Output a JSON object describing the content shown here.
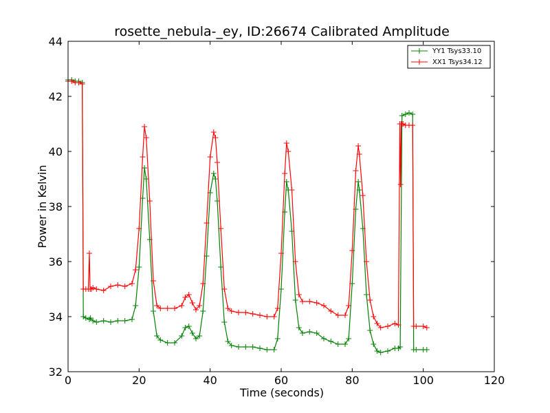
{
  "chart_data": {
    "type": "line",
    "title": "rosette_nebula-_ey, ID:26674 Calibrated Amplitude",
    "xlabel": "Time (seconds)",
    "ylabel": "Power in Kelvin",
    "xlim": [
      0,
      120
    ],
    "ylim": [
      32,
      44
    ],
    "xticks": [
      0,
      20,
      40,
      60,
      80,
      100,
      120
    ],
    "yticks": [
      32,
      34,
      36,
      38,
      40,
      42,
      44
    ],
    "grid": false,
    "legend_position": "top-right",
    "marker": "+",
    "series": [
      {
        "name": "YY1 Tsys33.10",
        "color": "#008000",
        "x": [
          0,
          1,
          2,
          3,
          4,
          4.3,
          5,
          6,
          6.3,
          7,
          8,
          10,
          12,
          14,
          16,
          18,
          19,
          20,
          21,
          21.5,
          22,
          23,
          24,
          25,
          26,
          28,
          30,
          32,
          33,
          34,
          35,
          36,
          37,
          38,
          39,
          40,
          41,
          41.5,
          42,
          43,
          44,
          45,
          46,
          48,
          50,
          52,
          54,
          56,
          58,
          59,
          60,
          61,
          61.5,
          62,
          63,
          64,
          65,
          66,
          68,
          70,
          72,
          74,
          76,
          78,
          79,
          80,
          81,
          81.7,
          82,
          83,
          84,
          85,
          86,
          87,
          88,
          90,
          92,
          93,
          93.5,
          94,
          95,
          96,
          97,
          97.3,
          98,
          100,
          101
        ],
        "values": [
          42.6,
          42.6,
          42.55,
          42.55,
          42.5,
          34.0,
          33.95,
          33.9,
          33.95,
          33.85,
          33.8,
          33.85,
          33.8,
          33.85,
          33.85,
          33.9,
          34.4,
          35.8,
          38.3,
          39.4,
          39.0,
          36.8,
          34.2,
          33.3,
          33.15,
          33.05,
          33.05,
          33.3,
          33.6,
          33.65,
          33.4,
          33.2,
          33.3,
          34.2,
          36.2,
          38.5,
          39.2,
          39.0,
          38.2,
          35.8,
          33.8,
          33.1,
          32.95,
          32.9,
          32.9,
          32.9,
          32.85,
          32.8,
          32.8,
          33.2,
          35.0,
          37.8,
          38.9,
          38.6,
          37.1,
          34.6,
          33.6,
          33.4,
          33.45,
          33.4,
          33.2,
          33.1,
          33.0,
          33.0,
          33.2,
          35.2,
          37.9,
          38.9,
          38.6,
          37.2,
          34.8,
          33.5,
          33.0,
          32.75,
          32.7,
          32.75,
          32.85,
          32.85,
          32.9,
          41.3,
          41.35,
          41.4,
          41.35,
          32.8,
          32.8,
          32.8,
          32.8
        ]
      },
      {
        "name": "XX1 Tsys34.12",
        "color": "#ff0000",
        "x": [
          0,
          1,
          2,
          3,
          4,
          4.3,
          5,
          5.7,
          6,
          6.2,
          6.5,
          7,
          8,
          10,
          12,
          14,
          16,
          18,
          19,
          20,
          21,
          21.5,
          22,
          23,
          24,
          25,
          26,
          28,
          30,
          32,
          33,
          34,
          35,
          36,
          37,
          38,
          39,
          40,
          41,
          41.5,
          42,
          43,
          44,
          45,
          46,
          48,
          50,
          52,
          54,
          56,
          58,
          59,
          60,
          61,
          61.5,
          62,
          63,
          64,
          65,
          66,
          68,
          70,
          72,
          74,
          76,
          78,
          79,
          80,
          81,
          81.7,
          82,
          83,
          84,
          85,
          86,
          87,
          88,
          90,
          92,
          93,
          93.4,
          93.6,
          93.8,
          94,
          94.3,
          95,
          96,
          97,
          97.3,
          98,
          100,
          101
        ],
        "values": [
          42.55,
          42.55,
          42.5,
          42.5,
          42.45,
          35.0,
          35.0,
          35.0,
          36.3,
          35.0,
          35.0,
          35.05,
          35.0,
          34.95,
          35.1,
          35.15,
          35.1,
          35.2,
          35.7,
          37.2,
          39.8,
          40.9,
          40.5,
          38.2,
          35.3,
          34.4,
          34.3,
          34.3,
          34.3,
          34.4,
          34.7,
          34.8,
          34.5,
          34.25,
          34.4,
          35.2,
          37.4,
          39.8,
          40.7,
          40.5,
          39.6,
          37.2,
          35.0,
          34.3,
          34.2,
          34.15,
          34.15,
          34.1,
          34.05,
          34.0,
          34.0,
          34.3,
          36.3,
          39.2,
          40.3,
          40.0,
          38.6,
          36.0,
          34.8,
          34.55,
          34.55,
          34.5,
          34.4,
          34.2,
          34.05,
          34.05,
          34.4,
          36.4,
          39.3,
          40.2,
          39.9,
          38.4,
          36.0,
          34.6,
          34.0,
          33.75,
          33.6,
          33.65,
          33.75,
          33.7,
          41.0,
          38.8,
          41.0,
          41.0,
          41.0,
          40.95,
          40.95,
          40.95,
          33.65,
          33.65,
          33.65,
          33.6
        ]
      }
    ]
  }
}
